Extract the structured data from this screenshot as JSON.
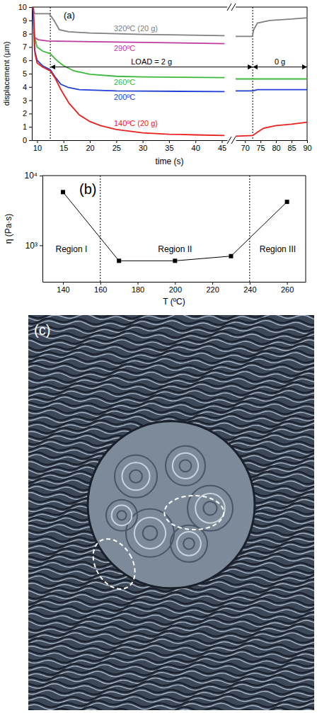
{
  "chart_data": [
    {
      "type": "line",
      "label": "(a)",
      "x_label": "time (s)",
      "y_label": "displacement (µm)",
      "xlim": [
        [
          9,
          46
        ],
        [
          67,
          90
        ]
      ],
      "xticks": [
        10,
        15,
        20,
        25,
        30,
        35,
        40,
        45,
        70,
        75,
        80,
        85,
        90
      ],
      "ylim": [
        0,
        10
      ],
      "yticks": [
        0,
        1,
        2,
        3,
        4,
        5,
        6,
        7,
        8,
        9,
        10
      ],
      "vlines": [
        12.5,
        72.5
      ],
      "annotations": [
        {
          "text": "LOAD = 2 g",
          "x1": 12.5,
          "x2": 72.5,
          "y": 5.5
        },
        {
          "text": "0 g",
          "x1": 72.5,
          "x2": 90,
          "y": 5.5
        }
      ],
      "series": [
        {
          "name": "320ºC (20 g)",
          "color": "#808080",
          "x": [
            9.2,
            9.4,
            9.6,
            12.3,
            13.2,
            14.2,
            16,
            20,
            30,
            45.5,
            null,
            67,
            72.4,
            72.8,
            74,
            78,
            85,
            90
          ],
          "values": [
            10,
            9.6,
            9.5,
            9.5,
            9.0,
            8.3,
            8.15,
            8.05,
            7.95,
            7.85,
            null,
            7.8,
            7.8,
            8.3,
            8.8,
            9.0,
            9.1,
            9.2
          ]
        },
        {
          "name": "290ºC",
          "color": "#c0399f",
          "x": [
            9.3,
            9.6,
            10.2,
            12,
            20,
            30,
            45.5
          ],
          "values": [
            8.1,
            7.7,
            7.55,
            7.45,
            7.4,
            7.35,
            7.25
          ]
        },
        {
          "name": "260ºC",
          "color": "#3cb83c",
          "x": [
            9.2,
            9.5,
            10,
            11,
            12.5,
            13.2,
            14,
            15,
            17,
            20,
            25,
            30,
            45.5,
            null,
            67,
            90
          ],
          "values": [
            10,
            7.8,
            7.0,
            6.7,
            6.5,
            6.2,
            5.9,
            5.6,
            5.2,
            4.95,
            4.8,
            4.75,
            4.7,
            null,
            4.6,
            4.6
          ]
        },
        {
          "name": "200ºC",
          "color": "#1f3fd6",
          "x": [
            9.2,
            9.5,
            10,
            11,
            12.5,
            13.5,
            14.5,
            16,
            18,
            25,
            45.5,
            null,
            67,
            72.5,
            74,
            90
          ],
          "values": [
            10,
            6.8,
            6.0,
            5.6,
            5.3,
            4.7,
            4.2,
            3.95,
            3.8,
            3.7,
            3.65,
            null,
            3.7,
            3.7,
            3.8,
            3.8
          ]
        },
        {
          "name": "140ºC (20 g)",
          "color": "#e8201e",
          "x": [
            9.3,
            9.6,
            10,
            11,
            12.5,
            13.5,
            14.5,
            16,
            18,
            20,
            22,
            25,
            30,
            35,
            40,
            45.5,
            null,
            67,
            72.5,
            74,
            76,
            80,
            85,
            90
          ],
          "values": [
            10,
            6.5,
            5.8,
            5.5,
            5.2,
            4.6,
            3.8,
            2.8,
            1.9,
            1.4,
            1.1,
            0.8,
            0.55,
            0.45,
            0.4,
            0.35,
            null,
            0.3,
            0.35,
            0.6,
            0.9,
            1.1,
            1.2,
            1.35
          ]
        }
      ]
    },
    {
      "type": "line",
      "label": "(b)",
      "x_label": "T (ºC)",
      "y_label": "η (Pa·s)",
      "log": "y",
      "color": "#000000",
      "marker": "square",
      "x": [
        140,
        170,
        200,
        230,
        260
      ],
      "values": [
        5800,
        600,
        600,
        700,
        4200
      ],
      "xlim": [
        129,
        270
      ],
      "xticks": [
        140,
        160,
        180,
        200,
        220,
        240,
        260
      ],
      "ylim": [
        300,
        10000
      ],
      "yticks": [
        {
          "value": 1000,
          "label": "10³"
        },
        {
          "value": 10000,
          "label": "10⁴"
        }
      ],
      "vlines": [
        160,
        240
      ],
      "regions": [
        "Region I",
        "Region II",
        "Region III"
      ]
    },
    {
      "type": "image",
      "label": "(c)"
    }
  ]
}
